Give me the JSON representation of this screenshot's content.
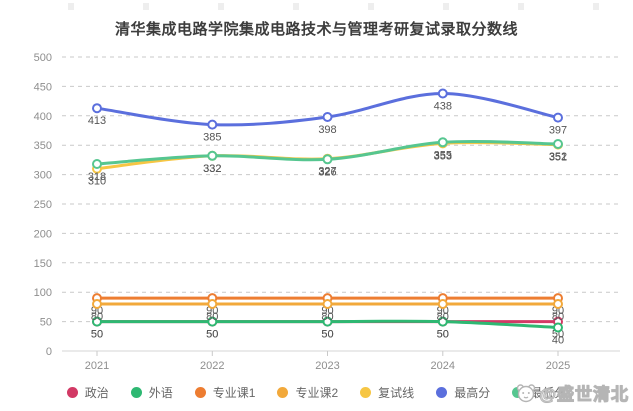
{
  "page": {
    "watermark_text": "@盛世清北",
    "background": "#ffffff"
  },
  "chart_data": {
    "type": "line",
    "title": "清华集成电路学院集成电路技术与管理考研复试录取分数线",
    "categories": [
      "2021",
      "2022",
      "2023",
      "2024",
      "2025"
    ],
    "xlabel": "",
    "ylabel": "",
    "ylim": [
      0,
      500
    ],
    "y_tick_step": 50,
    "grid": "horizontal-dashed",
    "legend_position": "bottom",
    "line_style": "smooth",
    "series": [
      {
        "id": "politics",
        "name": "政治",
        "color": "#d23965",
        "values": [
          50,
          50,
          50,
          50,
          50
        ]
      },
      {
        "id": "foreign-language",
        "name": "外语",
        "color": "#2eb872",
        "values": [
          50,
          50,
          50,
          50,
          40
        ]
      },
      {
        "id": "major-course-1",
        "name": "专业课1",
        "color": "#ed7d31",
        "values": [
          90,
          90,
          90,
          90,
          90
        ]
      },
      {
        "id": "major-course-2",
        "name": "专业课2",
        "color": "#f2a93b",
        "values": [
          80,
          80,
          80,
          80,
          80
        ]
      },
      {
        "id": "retest-line",
        "name": "复试线",
        "color": "#f6c644",
        "values": [
          310,
          332,
          327,
          353,
          351
        ]
      },
      {
        "id": "highest-score",
        "name": "最高分",
        "color": "#5b6fdd",
        "values": [
          413,
          385,
          398,
          438,
          397
        ]
      },
      {
        "id": "lowest-score",
        "name": "最低分",
        "color": "#56c690",
        "values": [
          318,
          332,
          326,
          355,
          352
        ]
      }
    ]
  }
}
